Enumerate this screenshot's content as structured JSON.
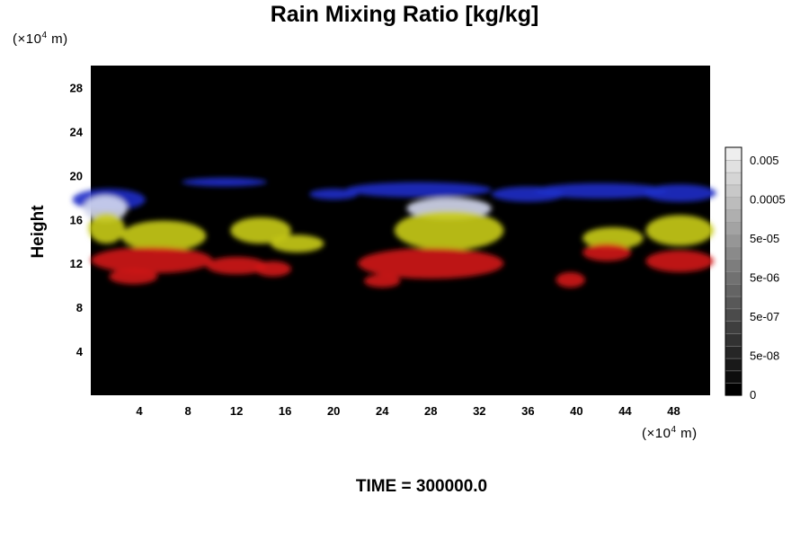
{
  "chart_data": {
    "type": "heatmap",
    "title": "Rain Mixing Ratio [kg/kg]",
    "ylabel": "Height",
    "xlabel": "",
    "x_unit": "(×10⁴ m)",
    "y_unit": "(×10⁴ m)",
    "x_unit_base": "(×10",
    "x_unit_exp": "4",
    "x_unit_tail": " m)",
    "y_unit_base": "(×10",
    "y_unit_exp": "4",
    "y_unit_tail": " m)",
    "xlim": [
      0,
      51
    ],
    "ylim": [
      0,
      30
    ],
    "x_ticks": [
      "4",
      "8",
      "12",
      "16",
      "20",
      "24",
      "28",
      "32",
      "36",
      "40",
      "44",
      "48"
    ],
    "y_ticks": [
      "4",
      "8",
      "12",
      "16",
      "20",
      "24",
      "28"
    ],
    "background_color": "#000000",
    "colorbar": {
      "labels": [
        "0.005",
        "0.0005",
        "5e-05",
        "5e-06",
        "5e-07",
        "5e-08",
        "0"
      ],
      "levels": 20,
      "colors": [
        "#000000",
        "#ffffff"
      ]
    },
    "layers": [
      {
        "name": "blue",
        "color": "#1c2ec8",
        "blobs": [
          [
            1.5,
            17.8,
            3.0,
            1.0
          ],
          [
            11,
            19.4,
            3.5,
            0.4
          ],
          [
            20,
            18.3,
            2.0,
            0.5
          ],
          [
            27,
            18.7,
            6.0,
            0.7
          ],
          [
            36,
            18.3,
            3.0,
            0.7
          ],
          [
            42,
            18.6,
            5.5,
            0.7
          ],
          [
            48.5,
            18.4,
            3.0,
            0.8
          ]
        ]
      },
      {
        "name": "white",
        "color": "#d4d8ee",
        "blobs": [
          [
            1.2,
            17.0,
            1.8,
            1.2
          ],
          [
            29.5,
            17.0,
            3.5,
            1.0
          ]
        ]
      },
      {
        "name": "yellow",
        "color": "#c9cc16",
        "blobs": [
          [
            1.3,
            15.2,
            1.5,
            1.4
          ],
          [
            6.0,
            14.5,
            3.5,
            1.4
          ],
          [
            14.0,
            15.0,
            2.5,
            1.2
          ],
          [
            17.0,
            13.8,
            2.2,
            0.8
          ],
          [
            29.5,
            15.0,
            4.5,
            1.8
          ],
          [
            43.0,
            14.3,
            2.5,
            1.0
          ],
          [
            48.5,
            15.0,
            2.8,
            1.4
          ]
        ]
      },
      {
        "name": "red",
        "color": "#d11414",
        "blobs": [
          [
            5.0,
            12.3,
            5.0,
            1.2
          ],
          [
            3.5,
            10.8,
            2.0,
            0.7
          ],
          [
            12.0,
            11.8,
            2.5,
            0.8
          ],
          [
            15.0,
            11.5,
            1.5,
            0.7
          ],
          [
            28.0,
            12.0,
            6.0,
            1.4
          ],
          [
            24.0,
            10.4,
            1.5,
            0.6
          ],
          [
            39.5,
            10.5,
            1.2,
            0.7
          ],
          [
            42.5,
            13.0,
            2.0,
            0.8
          ],
          [
            48.5,
            12.2,
            2.8,
            1.0
          ]
        ]
      }
    ]
  },
  "footer": "TIME = 300000.0"
}
